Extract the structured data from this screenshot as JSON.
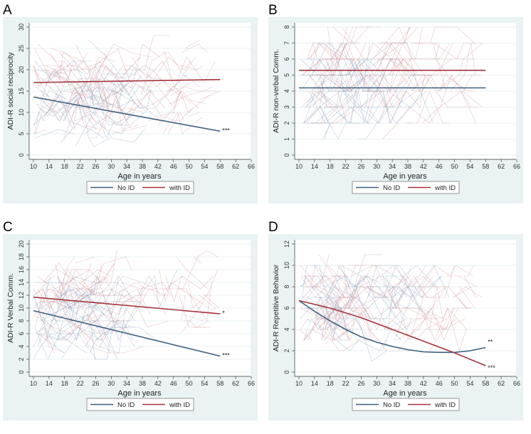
{
  "chart_data": [
    {
      "panel": "A",
      "type": "line",
      "ylabel": "ADI-R social reciprocity",
      "xlabel": "Age in years",
      "xlim": [
        10,
        66
      ],
      "xticks": [
        10,
        14,
        18,
        22,
        26,
        30,
        34,
        38,
        42,
        46,
        50,
        54,
        58,
        62,
        66
      ],
      "ylim": [
        0,
        30
      ],
      "yticks": [
        0,
        5,
        10,
        15,
        20,
        25,
        30
      ],
      "grid": true,
      "legend": {
        "position": "bottom",
        "entries": [
          "No ID",
          "with ID"
        ]
      },
      "series": [
        {
          "name": "No ID",
          "color": "#3b5f82",
          "x": [
            10,
            58
          ],
          "y": [
            13.6,
            5.6
          ],
          "annotation": "***"
        },
        {
          "name": "with ID",
          "color": "#a4343a",
          "x": [
            10,
            58
          ],
          "y": [
            17.0,
            17.7
          ],
          "annotation": ""
        }
      ]
    },
    {
      "panel": "B",
      "type": "line",
      "ylabel": "ADI-R non-verbal Comm.",
      "xlabel": "Age in years",
      "xlim": [
        10,
        66
      ],
      "xticks": [
        10,
        14,
        18,
        22,
        26,
        30,
        34,
        38,
        42,
        46,
        50,
        54,
        58,
        62,
        66
      ],
      "ylim": [
        0,
        8
      ],
      "yticks": [
        0,
        1,
        2,
        3,
        4,
        5,
        6,
        7,
        8
      ],
      "grid": true,
      "legend": {
        "position": "bottom",
        "entries": [
          "No ID",
          "with ID"
        ]
      },
      "series": [
        {
          "name": "No ID",
          "color": "#3b5f82",
          "x": [
            10,
            58
          ],
          "y": [
            4.2,
            4.2
          ],
          "annotation": ""
        },
        {
          "name": "with ID",
          "color": "#a4343a",
          "x": [
            10,
            58
          ],
          "y": [
            5.3,
            5.3
          ],
          "annotation": ""
        }
      ]
    },
    {
      "panel": "C",
      "type": "line",
      "ylabel": "ADI-R Verbal Comm.",
      "xlabel": "Age in years",
      "xlim": [
        10,
        66
      ],
      "xticks": [
        10,
        14,
        18,
        22,
        26,
        30,
        34,
        38,
        42,
        46,
        50,
        54,
        58,
        62,
        66
      ],
      "ylim": [
        0,
        20
      ],
      "yticks": [
        0,
        2,
        4,
        6,
        8,
        10,
        12,
        14,
        16,
        18,
        20
      ],
      "grid": true,
      "legend": {
        "position": "bottom",
        "entries": [
          "No ID",
          "with ID"
        ]
      },
      "series": [
        {
          "name": "No ID",
          "color": "#3b5f82",
          "x": [
            10,
            58
          ],
          "y": [
            9.6,
            2.5
          ],
          "annotation": "***"
        },
        {
          "name": "with ID",
          "color": "#a4343a",
          "x": [
            10,
            58
          ],
          "y": [
            11.7,
            9.1
          ],
          "annotation": "*"
        }
      ]
    },
    {
      "panel": "D",
      "type": "line",
      "ylabel": "ADI-R Repetitive Behavior",
      "xlabel": "Age in years",
      "xlim": [
        10,
        66
      ],
      "xticks": [
        10,
        14,
        18,
        22,
        26,
        30,
        34,
        38,
        42,
        46,
        50,
        54,
        58,
        62,
        66
      ],
      "ylim": [
        0,
        12
      ],
      "yticks": [
        0,
        2,
        4,
        6,
        8,
        10,
        12
      ],
      "grid": true,
      "legend": {
        "position": "bottom",
        "entries": [
          "No ID",
          "with ID"
        ]
      },
      "series": [
        {
          "name": "No ID",
          "color": "#3b5f82",
          "x": [
            10,
            14,
            18,
            22,
            26,
            30,
            34,
            38,
            42,
            46,
            50,
            54,
            58
          ],
          "y": [
            6.7,
            5.7,
            4.8,
            4.0,
            3.3,
            2.8,
            2.4,
            2.1,
            1.9,
            1.85,
            1.85,
            2.0,
            2.3
          ],
          "annotation": "**"
        },
        {
          "name": "with ID",
          "color": "#a4343a",
          "x": [
            10,
            18,
            26,
            34,
            42,
            50,
            58
          ],
          "y": [
            6.7,
            6.0,
            5.1,
            4.0,
            2.9,
            1.8,
            0.6
          ],
          "annotation": "***"
        }
      ]
    }
  ]
}
